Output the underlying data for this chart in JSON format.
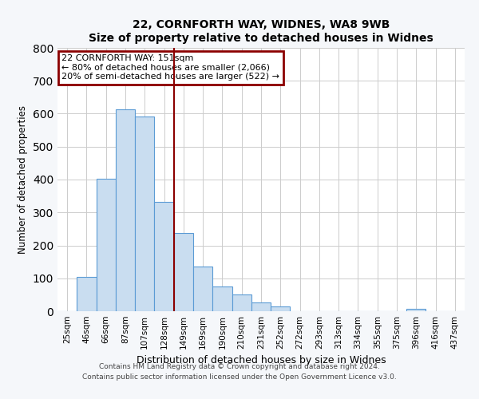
{
  "title": "22, CORNFORTH WAY, WIDNES, WA8 9WB",
  "subtitle": "Size of property relative to detached houses in Widnes",
  "xlabel": "Distribution of detached houses by size in Widnes",
  "ylabel": "Number of detached properties",
  "bar_labels": [
    "25sqm",
    "46sqm",
    "66sqm",
    "87sqm",
    "107sqm",
    "128sqm",
    "149sqm",
    "169sqm",
    "190sqm",
    "210sqm",
    "231sqm",
    "252sqm",
    "272sqm",
    "293sqm",
    "313sqm",
    "334sqm",
    "355sqm",
    "375sqm",
    "396sqm",
    "416sqm",
    "437sqm"
  ],
  "bar_values": [
    0,
    105,
    403,
    614,
    591,
    333,
    237,
    136,
    76,
    50,
    26,
    15,
    0,
    0,
    0,
    0,
    0,
    0,
    8,
    0,
    0
  ],
  "bar_color": "#c9ddf0",
  "bar_edge_color": "#5b9bd5",
  "vline_x_index": 6,
  "vline_color": "#8b0000",
  "annotation_title": "22 CORNFORTH WAY: 151sqm",
  "annotation_line1": "← 80% of detached houses are smaller (2,066)",
  "annotation_line2": "20% of semi-detached houses are larger (522) →",
  "annotation_box_color": "#8b0000",
  "ylim": [
    0,
    800
  ],
  "yticks": [
    0,
    100,
    200,
    300,
    400,
    500,
    600,
    700,
    800
  ],
  "footer1": "Contains HM Land Registry data © Crown copyright and database right 2024.",
  "footer2": "Contains public sector information licensed under the Open Government Licence v3.0.",
  "bg_color": "#f5f7fa",
  "plot_bg_color": "#ffffff"
}
